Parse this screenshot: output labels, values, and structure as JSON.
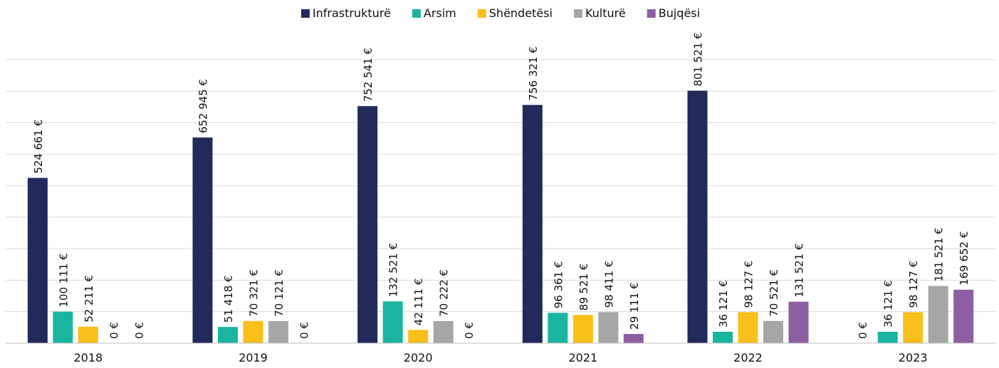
{
  "chart_data": {
    "type": "bar",
    "categories": [
      "2018",
      "2019",
      "2020",
      "2021",
      "2022",
      "2023"
    ],
    "series": [
      {
        "name": "Infrastrukturë",
        "color": "#222a5c",
        "values": [
          524661,
          652945,
          752541,
          756321,
          801521,
          0
        ],
        "value_labels": [
          "524 661 €",
          "652 945 €",
          "752 541 €",
          "756 321 €",
          "801 521 €",
          "0 €"
        ]
      },
      {
        "name": "Arsim",
        "color": "#1ab5a0",
        "values": [
          100111,
          51418,
          132521,
          96361,
          36121,
          36121
        ],
        "value_labels": [
          "100 111 €",
          "51 418 €",
          "132 521 €",
          "96 361 €",
          "36 121 €",
          "36 121 €"
        ]
      },
      {
        "name": "Shëndetësi",
        "color": "#f9bf1a",
        "values": [
          52211,
          70321,
          42111,
          89521,
          98127,
          98127
        ],
        "value_labels": [
          "52 211 €",
          "70 321 €",
          "42 111 €",
          "89 521 €",
          "98 127 €",
          "98 127 €"
        ]
      },
      {
        "name": "Kulturë",
        "color": "#a6a6a6",
        "values": [
          0,
          70121,
          70222,
          98411,
          70521,
          181521
        ],
        "value_labels": [
          "0 €",
          "70 121 €",
          "70 222 €",
          "98 411 €",
          "70 521 €",
          "181 521 €"
        ]
      },
      {
        "name": "Bujqësi",
        "color": "#8e5ea2",
        "values": [
          0,
          0,
          0,
          29111,
          131521,
          169652
        ],
        "value_labels": [
          "0 €",
          "0 €",
          "0 €",
          "29 111 €",
          "131 521 €",
          "169 652 €"
        ]
      }
    ],
    "ylim": [
      0,
      900000
    ],
    "yticks": [
      0,
      100000,
      200000,
      300000,
      400000,
      500000,
      600000,
      700000,
      800000,
      900000
    ],
    "grid": true,
    "legend": "top"
  }
}
